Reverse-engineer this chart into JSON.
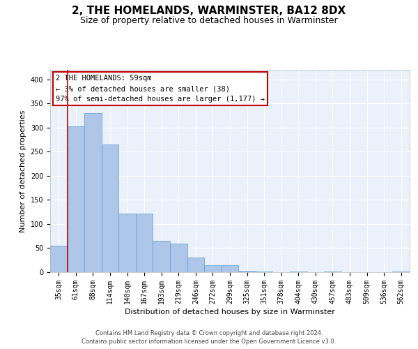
{
  "title": "2, THE HOMELANDS, WARMINSTER, BA12 8DX",
  "subtitle": "Size of property relative to detached houses in Warminster",
  "xlabel": "Distribution of detached houses by size in Warminster",
  "ylabel": "Number of detached properties",
  "categories": [
    "35sqm",
    "61sqm",
    "88sqm",
    "114sqm",
    "140sqm",
    "167sqm",
    "193sqm",
    "219sqm",
    "246sqm",
    "272sqm",
    "299sqm",
    "325sqm",
    "351sqm",
    "378sqm",
    "404sqm",
    "430sqm",
    "457sqm",
    "483sqm",
    "509sqm",
    "536sqm",
    "562sqm"
  ],
  "values": [
    55,
    302,
    330,
    265,
    122,
    122,
    65,
    60,
    30,
    15,
    15,
    3,
    1,
    0,
    1,
    0,
    1,
    0,
    0,
    0,
    1
  ],
  "bar_color": "#aec6e8",
  "bar_edge_color": "#5b9bd5",
  "highlight_color": "#c00000",
  "annotation_line1": "2 THE HOMELANDS: 59sqm",
  "annotation_line2": "← 3% of detached houses are smaller (38)",
  "annotation_line3": "97% of semi-detached houses are larger (1,177) →",
  "annotation_box_color": "#ffffff",
  "annotation_box_edge_color": "#c00000",
  "ylim": [
    0,
    420
  ],
  "yticks": [
    0,
    50,
    100,
    150,
    200,
    250,
    300,
    350,
    400
  ],
  "footer1": "Contains HM Land Registry data © Crown copyright and database right 2024.",
  "footer2": "Contains public sector information licensed under the Open Government Licence v3.0.",
  "bg_color": "#eaf1fb",
  "grid_color": "#ffffff",
  "title_fontsize": 11,
  "subtitle_fontsize": 9,
  "tick_fontsize": 7,
  "ylabel_fontsize": 8,
  "xlabel_fontsize": 8,
  "annotation_fontsize": 7.5,
  "footer_fontsize": 6
}
